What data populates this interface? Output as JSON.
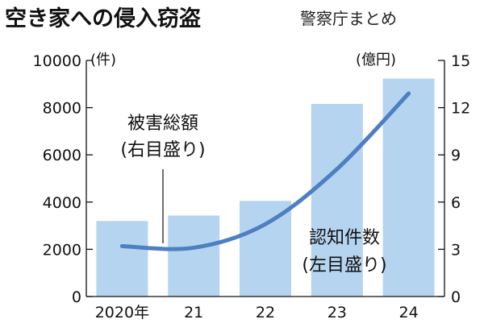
{
  "chart_data": {
    "type": "bar",
    "title": "空き家への侵入窃盗",
    "source": "警察庁まとめ",
    "categories": [
      "2020年",
      "21",
      "22",
      "23",
      "24"
    ],
    "series": [
      {
        "name": "認知件数",
        "axis": "left",
        "type": "bar",
        "values": [
          3200,
          3430,
          4050,
          8160,
          9230
        ],
        "color": "#b5d4f0"
      },
      {
        "name": "被害総額",
        "axis": "right",
        "type": "line",
        "values": [
          3.2,
          3.1,
          4.6,
          8.1,
          12.9
        ],
        "color": "#4d7fc1"
      }
    ],
    "left_axis": {
      "unit": "(件)",
      "ylim": [
        0,
        10000
      ],
      "ticks": [
        "0",
        "2000",
        "4000",
        "6000",
        "8000",
        "10000"
      ]
    },
    "right_axis": {
      "unit": "(億円)",
      "ylim": [
        0,
        15
      ],
      "ticks": [
        "0",
        "3",
        "6",
        "9",
        "12",
        "15"
      ]
    },
    "annotations": {
      "line_label": [
        "被害総額",
        "(右目盛り)"
      ],
      "bar_label": [
        "認知件数",
        "(左目盛り)"
      ]
    },
    "grid": false
  }
}
